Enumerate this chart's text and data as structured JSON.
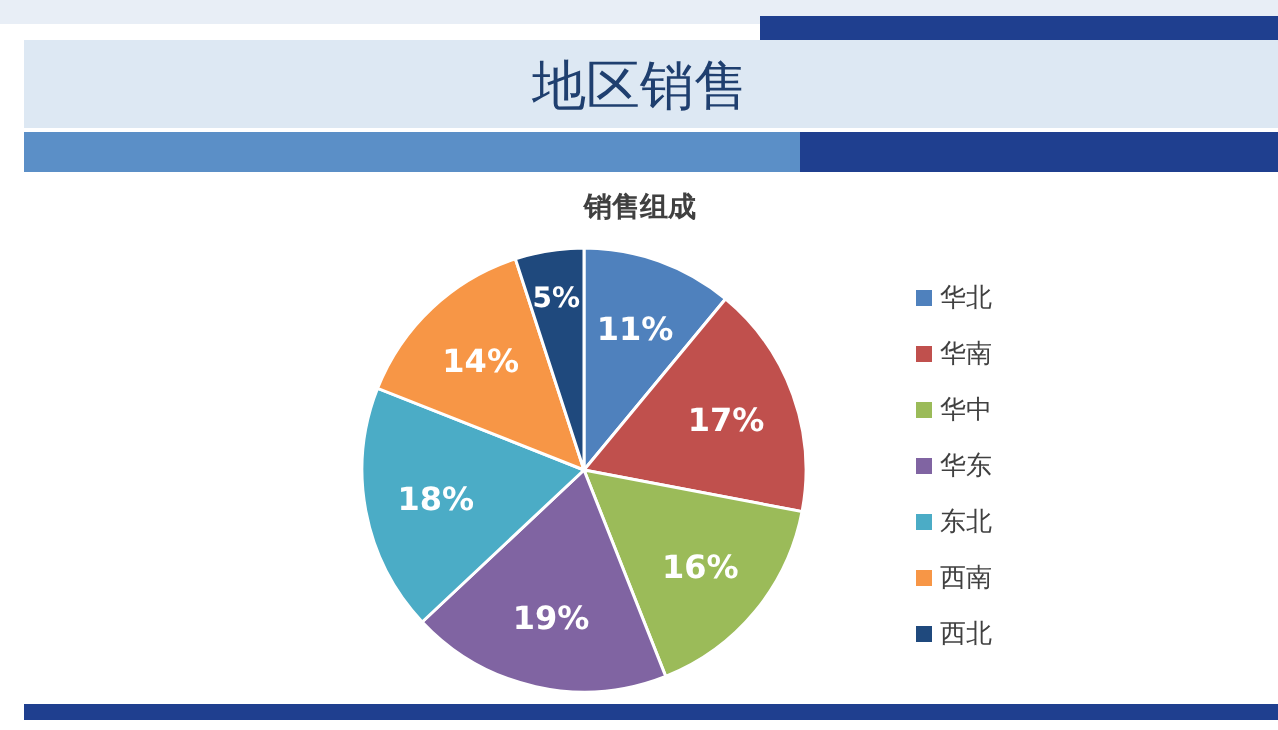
{
  "chart_data": {
    "type": "pie",
    "title": "地区销售",
    "subtitle": "销售组成",
    "categories": [
      "华北",
      "华南",
      "华中",
      "华东",
      "东北",
      "西南",
      "西北"
    ],
    "values": [
      11,
      17,
      16,
      19,
      18,
      14,
      5
    ],
    "colors": [
      "#4f81bd",
      "#c0504d",
      "#9bbb59",
      "#8064a2",
      "#4bacc6",
      "#f79646",
      "#1f497d"
    ],
    "value_labels": [
      "11%",
      "17%",
      "16%",
      "19%",
      "18%",
      "14%",
      "5%"
    ],
    "legend": "right"
  }
}
